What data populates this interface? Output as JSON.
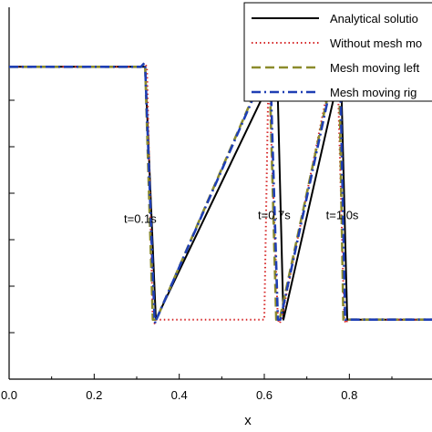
{
  "chart_data": {
    "type": "line",
    "title": "",
    "xlabel": "x",
    "ylabel": "",
    "xlim": [
      0.0,
      1.05
    ],
    "ylim": [
      0.0,
      1.0
    ],
    "xticks": [
      0.0,
      0.2,
      0.4,
      0.6,
      0.8
    ],
    "xtick_labels": [
      "0.0",
      "0.2",
      "0.4",
      "0.6",
      "0.8"
    ],
    "grid": false,
    "legend_position": "top-right",
    "series": [
      {
        "name": "Analytical solution",
        "legend_label": "Analytical solutio",
        "color": "#000000",
        "dash": "solid",
        "x": [
          0.0,
          0.32,
          0.345,
          0.63,
          0.645,
          0.78,
          0.795,
          1.05
        ],
        "y": [
          0.84,
          0.84,
          0.16,
          0.84,
          0.16,
          0.84,
          0.16,
          0.16
        ]
      },
      {
        "name": "Without mesh moving",
        "legend_label": "Without mesh mo",
        "color": "#d62728",
        "dash": "dotted",
        "x": [
          0.0,
          0.31,
          0.318,
          0.324,
          0.338,
          0.342,
          0.346,
          0.6,
          0.61,
          0.632,
          0.636,
          0.64,
          0.76,
          0.772,
          0.788,
          0.792,
          0.796,
          1.05
        ],
        "y": [
          0.84,
          0.84,
          0.85,
          0.84,
          0.16,
          0.15,
          0.16,
          0.16,
          0.84,
          0.16,
          0.15,
          0.16,
          0.84,
          0.84,
          0.16,
          0.15,
          0.16,
          0.16
        ]
      },
      {
        "name": "Mesh moving left",
        "legend_label": "Mesh moving left",
        "color": "#8b8b2c",
        "dash": "dashed",
        "x": [
          0.0,
          0.31,
          0.32,
          0.338,
          0.346,
          0.604,
          0.612,
          0.628,
          0.636,
          0.764,
          0.776,
          0.786,
          0.796,
          1.05
        ],
        "y": [
          0.84,
          0.84,
          0.84,
          0.16,
          0.16,
          0.84,
          0.84,
          0.16,
          0.16,
          0.84,
          0.84,
          0.16,
          0.16,
          0.16
        ]
      },
      {
        "name": "Mesh moving right",
        "legend_label": "Mesh moving rig",
        "color": "#1f3fb4",
        "dash": "dashdot",
        "x": [
          0.0,
          0.31,
          0.318,
          0.32,
          0.342,
          0.344,
          0.346,
          0.606,
          0.614,
          0.632,
          0.638,
          0.766,
          0.778,
          0.79,
          0.796,
          1.05
        ],
        "y": [
          0.84,
          0.84,
          0.85,
          0.84,
          0.16,
          0.15,
          0.16,
          0.84,
          0.84,
          0.16,
          0.16,
          0.84,
          0.84,
          0.16,
          0.16,
          0.16
        ]
      }
    ],
    "annotations": [
      {
        "text": "t=0.1s",
        "x": 0.27,
        "y": 0.42
      },
      {
        "text": "t=0.7s",
        "x": 0.585,
        "y": 0.43
      },
      {
        "text": "t=1.0s",
        "x": 0.745,
        "y": 0.43
      }
    ]
  }
}
